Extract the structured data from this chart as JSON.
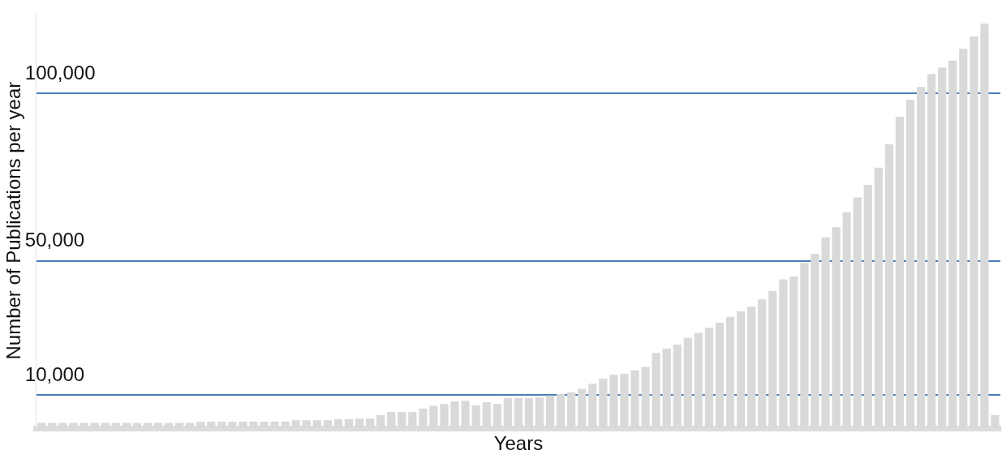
{
  "chart_data": {
    "type": "bar",
    "xlabel": "Years",
    "ylabel": "Number of Publications per year",
    "categories": [
      null,
      null,
      null,
      null,
      null,
      null,
      null,
      null,
      null,
      null,
      null,
      null,
      null,
      null,
      null,
      null,
      null,
      null,
      null,
      null,
      null,
      null,
      null,
      null,
      null,
      null,
      null,
      null,
      null,
      null,
      null,
      null,
      null,
      null,
      null,
      null,
      null,
      null,
      null,
      null,
      null,
      null,
      null,
      null,
      null,
      null,
      null,
      null,
      null,
      null,
      null,
      null,
      null,
      null,
      null,
      null,
      null,
      null,
      null,
      null,
      null,
      null,
      null,
      null,
      null,
      null,
      null,
      null,
      null,
      null,
      null,
      null,
      null,
      null,
      null,
      null,
      null,
      null,
      null,
      null,
      null,
      null,
      null,
      null,
      null,
      null,
      null,
      null,
      null,
      null,
      null
    ],
    "values": [
      1600,
      1600,
      1600,
      1600,
      1600,
      1600,
      1600,
      1600,
      1600,
      1600,
      1600,
      1600,
      1600,
      1600,
      1600,
      2000,
      2000,
      2000,
      2000,
      2000,
      2000,
      2000,
      2000,
      2000,
      2400,
      2400,
      2400,
      2400,
      2700,
      2700,
      2900,
      2900,
      3900,
      4900,
      4900,
      4900,
      5900,
      6700,
      7300,
      8000,
      8200,
      6900,
      7800,
      7300,
      9000,
      9000,
      9000,
      9200,
      9800,
      10300,
      10800,
      11800,
      13300,
      14800,
      16000,
      16300,
      17300,
      18300,
      22500,
      23800,
      25000,
      27000,
      28500,
      30000,
      31500,
      33300,
      35000,
      36300,
      38500,
      41000,
      44500,
      45300,
      49300,
      52100,
      57000,
      60000,
      64500,
      68900,
      72700,
      77800,
      84800,
      93000,
      98100,
      101900,
      105800,
      107700,
      109800,
      113300,
      117000,
      120800,
      3900
    ],
    "color": "#d9d9d9",
    "grid": "y",
    "legend": false,
    "ylim": [
      0,
      124000
    ],
    "yticks": [
      {
        "value": 10000,
        "label": "10,000"
      },
      {
        "value": 50000,
        "label": "50,000"
      },
      {
        "value": 100000,
        "label": "100,000"
      }
    ]
  }
}
